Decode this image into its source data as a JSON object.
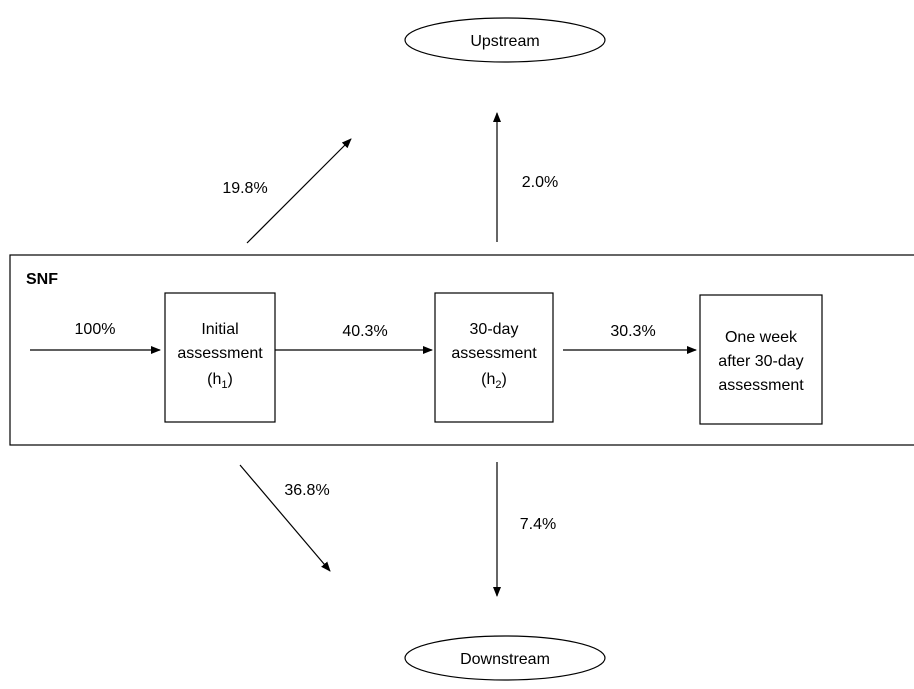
{
  "nodes": {
    "upstream": {
      "label": "Upstream"
    },
    "downstream": {
      "label": "Downstream"
    },
    "container": {
      "label": "SNF"
    },
    "initial": {
      "lines": [
        "Initial",
        "assessment"
      ],
      "var": {
        "open": "(h",
        "sub": "1",
        "close": ")"
      }
    },
    "day30": {
      "lines": [
        "30-day",
        "assessment"
      ],
      "var": {
        "open": "(h",
        "sub": "2",
        "close": ")"
      }
    },
    "week": {
      "lines": [
        "One week",
        "after 30-day",
        "assessment"
      ]
    }
  },
  "edges": {
    "entry": {
      "label": "100%"
    },
    "initial_to_day30": {
      "label": "40.3%"
    },
    "day30_to_week": {
      "label": "30.3%"
    },
    "initial_up": {
      "label": "19.8%"
    },
    "day30_up": {
      "label": "2.0%"
    },
    "initial_down": {
      "label": "36.8%"
    },
    "day30_down": {
      "label": "7.4%"
    }
  }
}
